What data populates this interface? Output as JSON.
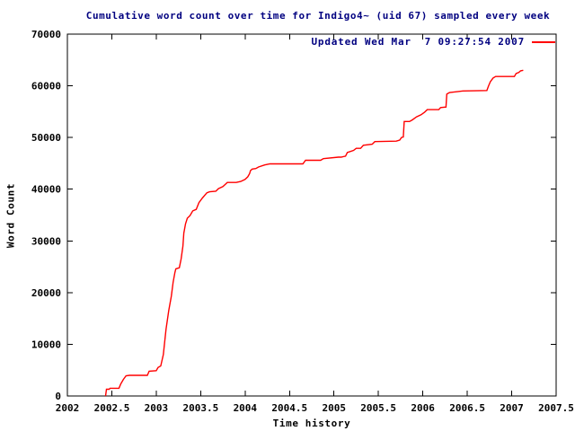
{
  "chart_data": {
    "type": "line",
    "title": "Cumulative word count over time for Indigo4~ (uid 67) sampled every week",
    "legend_label": "Updated Wed Mar  7 09:27:54 2007",
    "xlabel": "Time history",
    "ylabel": "Word Count",
    "xlim": [
      2002,
      2007.5
    ],
    "ylim": [
      0,
      70000
    ],
    "xticks": [
      2002,
      2002.5,
      2003,
      2003.5,
      2004,
      2004.5,
      2005,
      2005.5,
      2006,
      2006.5,
      2007,
      2007.5
    ],
    "yticks": [
      0,
      10000,
      20000,
      30000,
      40000,
      50000,
      60000,
      70000
    ],
    "grid": false,
    "legend_position": "top-right-inside",
    "colors": {
      "line": "#ff0000",
      "title": "#000080",
      "axis_text": "#000000",
      "frame": "#000000",
      "background": "#ffffff"
    },
    "series": [
      {
        "name": "cumulative-word-count",
        "points": [
          [
            2002.43,
            0
          ],
          [
            2002.44,
            1300
          ],
          [
            2002.47,
            1300
          ],
          [
            2002.48,
            1500
          ],
          [
            2002.58,
            1500
          ],
          [
            2002.6,
            2300
          ],
          [
            2002.63,
            3200
          ],
          [
            2002.66,
            3900
          ],
          [
            2002.7,
            4000
          ],
          [
            2002.9,
            4000
          ],
          [
            2002.92,
            4800
          ],
          [
            2003.0,
            4900
          ],
          [
            2003.02,
            5500
          ],
          [
            2003.05,
            5800
          ],
          [
            2003.08,
            8000
          ],
          [
            2003.11,
            12900
          ],
          [
            2003.14,
            16500
          ],
          [
            2003.17,
            19300
          ],
          [
            2003.19,
            22000
          ],
          [
            2003.21,
            23900
          ],
          [
            2003.22,
            24600
          ],
          [
            2003.26,
            24800
          ],
          [
            2003.28,
            26500
          ],
          [
            2003.3,
            29000
          ],
          [
            2003.31,
            31500
          ],
          [
            2003.33,
            33300
          ],
          [
            2003.35,
            34400
          ],
          [
            2003.38,
            34900
          ],
          [
            2003.41,
            35800
          ],
          [
            2003.45,
            36100
          ],
          [
            2003.48,
            37400
          ],
          [
            2003.52,
            38300
          ],
          [
            2003.57,
            39300
          ],
          [
            2003.6,
            39500
          ],
          [
            2003.67,
            39600
          ],
          [
            2003.7,
            40100
          ],
          [
            2003.75,
            40500
          ],
          [
            2003.78,
            41000
          ],
          [
            2003.8,
            41300
          ],
          [
            2003.9,
            41300
          ],
          [
            2003.95,
            41500
          ],
          [
            2004.0,
            41900
          ],
          [
            2004.03,
            42400
          ],
          [
            2004.05,
            43000
          ],
          [
            2004.06,
            43600
          ],
          [
            2004.08,
            43900
          ],
          [
            2004.12,
            44000
          ],
          [
            2004.15,
            44300
          ],
          [
            2004.22,
            44700
          ],
          [
            2004.28,
            44900
          ],
          [
            2004.65,
            44900
          ],
          [
            2004.68,
            45600
          ],
          [
            2004.85,
            45600
          ],
          [
            2004.88,
            45900
          ],
          [
            2005.05,
            46200
          ],
          [
            2005.08,
            46200
          ],
          [
            2005.13,
            46400
          ],
          [
            2005.15,
            47100
          ],
          [
            2005.22,
            47500
          ],
          [
            2005.25,
            47900
          ],
          [
            2005.3,
            47900
          ],
          [
            2005.33,
            48500
          ],
          [
            2005.43,
            48700
          ],
          [
            2005.46,
            49200
          ],
          [
            2005.7,
            49300
          ],
          [
            2005.74,
            49500
          ],
          [
            2005.76,
            50000
          ],
          [
            2005.78,
            50100
          ],
          [
            2005.79,
            53100
          ],
          [
            2005.85,
            53100
          ],
          [
            2005.88,
            53400
          ],
          [
            2005.93,
            54000
          ],
          [
            2005.98,
            54400
          ],
          [
            2006.02,
            54900
          ],
          [
            2006.05,
            55400
          ],
          [
            2006.18,
            55400
          ],
          [
            2006.2,
            55800
          ],
          [
            2006.26,
            55900
          ],
          [
            2006.27,
            58400
          ],
          [
            2006.3,
            58700
          ],
          [
            2006.45,
            59000
          ],
          [
            2006.72,
            59100
          ],
          [
            2006.74,
            60000
          ],
          [
            2006.76,
            60800
          ],
          [
            2006.79,
            61500
          ],
          [
            2006.82,
            61800
          ],
          [
            2007.03,
            61800
          ],
          [
            2007.05,
            62400
          ],
          [
            2007.08,
            62600
          ],
          [
            2007.1,
            62900
          ],
          [
            2007.13,
            63000
          ]
        ]
      }
    ]
  }
}
